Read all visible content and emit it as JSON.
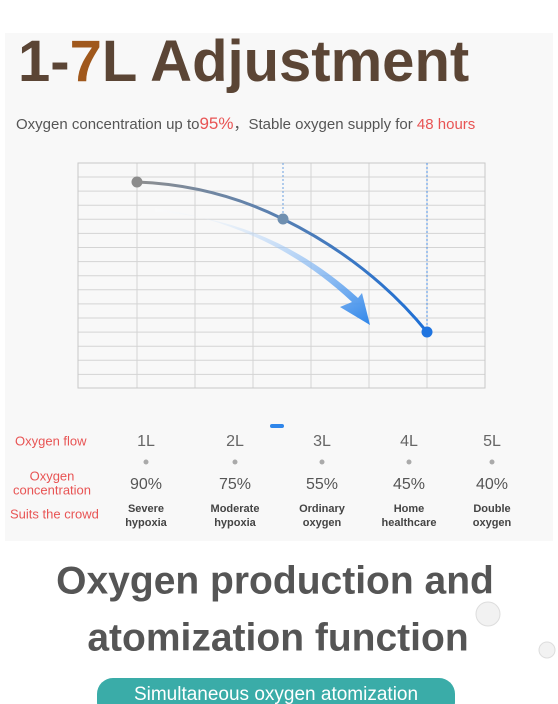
{
  "header": {
    "title_parts": [
      "1-",
      "7",
      "L Adjustment"
    ],
    "subtitle_parts": [
      "Oxygen concentration up to",
      "95%",
      "，Stable oxygen supply for ",
      "48 hours"
    ]
  },
  "table": {
    "row_labels": [
      "Oxygen flow",
      [
        "Oxygen",
        "concentration"
      ],
      "Suits the crowd"
    ],
    "columns": [
      {
        "flow": "1L",
        "concentration": "90%",
        "crowd": [
          "Severe",
          "hypoxia"
        ]
      },
      {
        "flow": "2L",
        "concentration": "75%",
        "crowd": [
          "Moderate",
          "hypoxia"
        ]
      },
      {
        "flow": "3L",
        "concentration": "55%",
        "crowd": [
          "Ordinary",
          "oxygen"
        ]
      },
      {
        "flow": "4L",
        "concentration": "45%",
        "crowd": [
          "Home",
          "healthcare"
        ]
      },
      {
        "flow": "5L",
        "concentration": "40%",
        "crowd": [
          "Double",
          "oxygen"
        ]
      }
    ]
  },
  "footer": {
    "heading_lines": [
      "Oxygen production and",
      "atomization function"
    ],
    "button": "Simultaneous oxygen atomization"
  }
}
